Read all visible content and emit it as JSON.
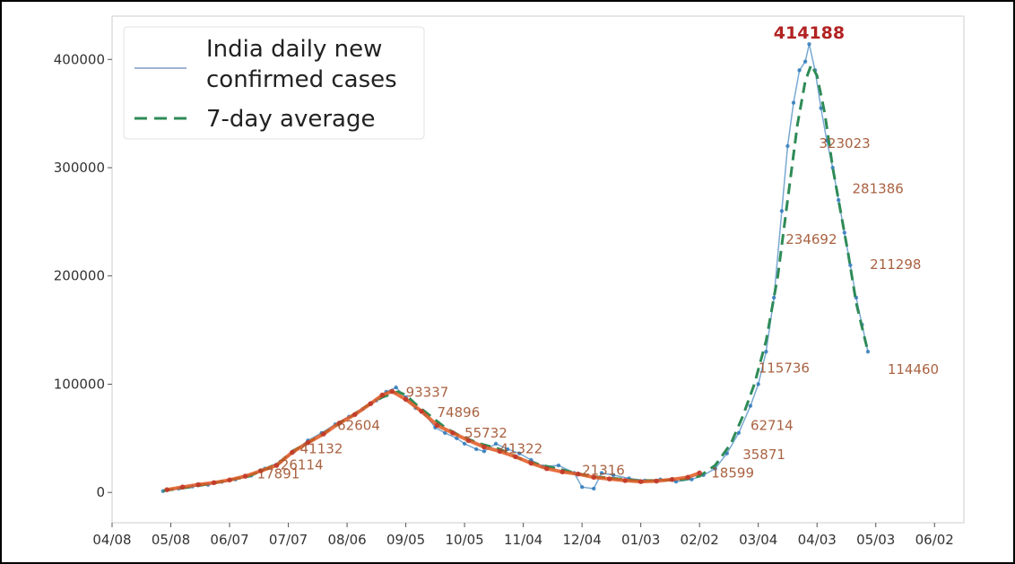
{
  "chart_data": {
    "type": "line",
    "x_tick_labels": [
      "04/08",
      "05/08",
      "06/07",
      "07/07",
      "08/06",
      "09/05",
      "10/05",
      "11/04",
      "12/04",
      "01/03",
      "02/02",
      "03/04",
      "04/03",
      "05/03",
      "06/02"
    ],
    "y_tick_labels": [
      "0",
      "100000",
      "200000",
      "300000",
      "400000"
    ],
    "ylim": [
      -28000,
      440000
    ],
    "xlim": [
      0,
      435
    ],
    "grid": false,
    "legend": {
      "position": "top-left",
      "entries": [
        {
          "label_line1": "India daily new",
          "label_line2": "confirmed cases",
          "style": "solid",
          "color": "#9fb3d1"
        },
        {
          "label_line1": "7-day average",
          "label_line2": "",
          "style": "dashed",
          "color": "#2e8b57"
        }
      ]
    },
    "series": [
      {
        "key": "daily",
        "color": "#1f6fb4",
        "points": [
          [
            26,
            1200
          ],
          [
            34,
            3500
          ],
          [
            41,
            5500
          ],
          [
            49,
            7000
          ],
          [
            56,
            9800
          ],
          [
            63,
            12000
          ],
          [
            71,
            15500
          ],
          [
            78,
            22000
          ],
          [
            86,
            28500
          ],
          [
            93,
            38000
          ],
          [
            100,
            48000
          ],
          [
            107,
            55000
          ],
          [
            114,
            63000
          ],
          [
            121,
            70000
          ],
          [
            128,
            77000
          ],
          [
            135,
            85000
          ],
          [
            140,
            93000
          ],
          [
            145,
            97000
          ],
          [
            150,
            88000
          ],
          [
            155,
            78000
          ],
          [
            160,
            72000
          ],
          [
            165,
            60000
          ],
          [
            170,
            55000
          ],
          [
            176,
            50000
          ],
          [
            180,
            45000
          ],
          [
            186,
            40000
          ],
          [
            190,
            38000
          ],
          [
            196,
            45000
          ],
          [
            202,
            40000
          ],
          [
            208,
            36000
          ],
          [
            214,
            30000
          ],
          [
            220,
            24000
          ],
          [
            228,
            25000
          ],
          [
            236,
            18000
          ],
          [
            240,
            5000
          ],
          [
            246,
            3500
          ],
          [
            250,
            18000
          ],
          [
            256,
            16000
          ],
          [
            264,
            13000
          ],
          [
            272,
            11000
          ],
          [
            280,
            12000
          ],
          [
            288,
            10000
          ],
          [
            296,
            12000
          ],
          [
            302,
            16000
          ],
          [
            308,
            22000
          ],
          [
            314,
            36000
          ],
          [
            320,
            55000
          ],
          [
            326,
            80000
          ],
          [
            330,
            100000
          ],
          [
            334,
            130000
          ],
          [
            338,
            180000
          ],
          [
            342,
            260000
          ],
          [
            345,
            320000
          ],
          [
            348,
            360000
          ],
          [
            351,
            390000
          ],
          [
            354,
            398000
          ],
          [
            356,
            414188
          ],
          [
            359,
            390000
          ],
          [
            362,
            355000
          ],
          [
            365,
            325000
          ],
          [
            368,
            300000
          ],
          [
            371,
            270000
          ],
          [
            374,
            240000
          ],
          [
            377,
            210000
          ],
          [
            380,
            180000
          ],
          [
            383,
            155000
          ],
          [
            386,
            130000
          ]
        ]
      },
      {
        "key": "avg7",
        "color": "#2e8b57",
        "points": [
          [
            26,
            1500
          ],
          [
            40,
            5000
          ],
          [
            55,
            9500
          ],
          [
            70,
            15000
          ],
          [
            85,
            27000
          ],
          [
            92,
            38000
          ],
          [
            100,
            46000
          ],
          [
            110,
            57000
          ],
          [
            120,
            68000
          ],
          [
            130,
            80000
          ],
          [
            138,
            88000
          ],
          [
            146,
            93000
          ],
          [
            150,
            90000
          ],
          [
            156,
            80000
          ],
          [
            163,
            70000
          ],
          [
            170,
            60000
          ],
          [
            178,
            52000
          ],
          [
            188,
            45000
          ],
          [
            198,
            40000
          ],
          [
            210,
            30000
          ],
          [
            220,
            25000
          ],
          [
            232,
            20000
          ],
          [
            244,
            15000
          ],
          [
            256,
            13000
          ],
          [
            268,
            11000
          ],
          [
            280,
            11000
          ],
          [
            292,
            12000
          ],
          [
            300,
            15000
          ],
          [
            308,
            25000
          ],
          [
            316,
            45000
          ],
          [
            322,
            70000
          ],
          [
            328,
            100000
          ],
          [
            334,
            140000
          ],
          [
            340,
            200000
          ],
          [
            345,
            270000
          ],
          [
            350,
            340000
          ],
          [
            354,
            380000
          ],
          [
            357,
            395000
          ],
          [
            360,
            385000
          ],
          [
            364,
            350000
          ],
          [
            368,
            300000
          ],
          [
            372,
            260000
          ],
          [
            376,
            220000
          ],
          [
            380,
            175000
          ],
          [
            386,
            130000
          ]
        ]
      },
      {
        "key": "annotated",
        "color": "#e25822",
        "points": [
          [
            28,
            2500
          ],
          [
            36,
            5000
          ],
          [
            44,
            7200
          ],
          [
            52,
            9000
          ],
          [
            60,
            11500
          ],
          [
            68,
            15000
          ],
          [
            76,
            20000
          ],
          [
            84,
            25000
          ],
          [
            92,
            37000
          ],
          [
            100,
            46000
          ],
          [
            108,
            54000
          ],
          [
            116,
            64000
          ],
          [
            124,
            72000
          ],
          [
            132,
            82000
          ],
          [
            138,
            90000
          ],
          [
            143,
            93337
          ],
          [
            150,
            86000
          ],
          [
            158,
            75000
          ],
          [
            166,
            62000
          ],
          [
            174,
            55000
          ],
          [
            182,
            48000
          ],
          [
            190,
            42000
          ],
          [
            198,
            38000
          ],
          [
            206,
            33000
          ],
          [
            214,
            27000
          ],
          [
            222,
            22000
          ],
          [
            230,
            19000
          ],
          [
            238,
            17000
          ],
          [
            246,
            14000
          ],
          [
            254,
            12500
          ],
          [
            262,
            11000
          ],
          [
            270,
            10000
          ],
          [
            278,
            10500
          ],
          [
            286,
            12000
          ],
          [
            294,
            14000
          ],
          [
            300,
            18000
          ]
        ]
      }
    ],
    "data_labels": [
      {
        "x": 356,
        "y": 414188,
        "text": "414188",
        "peak": true
      },
      {
        "x": 361,
        "y": 323023,
        "text": "323023"
      },
      {
        "x": 378,
        "y": 281386,
        "text": "281386"
      },
      {
        "x": 344,
        "y": 234692,
        "text": "234692"
      },
      {
        "x": 387,
        "y": 211298,
        "text": "211298"
      },
      {
        "x": 330,
        "y": 115736,
        "text": "115736"
      },
      {
        "x": 396,
        "y": 114460,
        "text": "114460"
      },
      {
        "x": 326,
        "y": 62714,
        "text": "62714"
      },
      {
        "x": 322,
        "y": 35871,
        "text": "35871"
      },
      {
        "x": 306,
        "y": 18599,
        "text": "18599"
      },
      {
        "x": 150,
        "y": 93337,
        "text": "93337"
      },
      {
        "x": 166,
        "y": 74896,
        "text": "74896"
      },
      {
        "x": 180,
        "y": 55732,
        "text": "55732"
      },
      {
        "x": 198,
        "y": 41322,
        "text": "41322"
      },
      {
        "x": 96,
        "y": 41132,
        "text": "41132"
      },
      {
        "x": 86,
        "y": 26114,
        "text": "26114"
      },
      {
        "x": 74,
        "y": 17891,
        "text": "17891"
      },
      {
        "x": 240,
        "y": 21316,
        "text": "21316"
      },
      {
        "x": 115,
        "y": 62604,
        "text": "62604"
      }
    ]
  },
  "legend_text": {
    "daily_line1": "India daily new",
    "daily_line2": "confirmed cases",
    "avg": "7-day average"
  },
  "peak_label": "414188"
}
